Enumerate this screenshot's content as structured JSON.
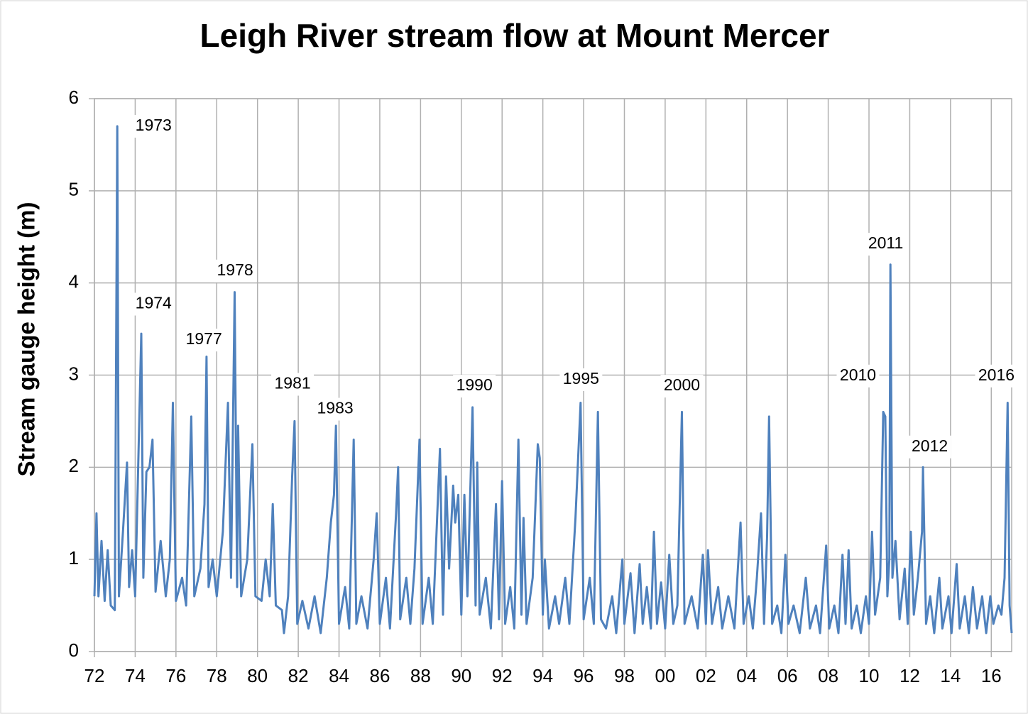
{
  "chart_data": {
    "type": "line",
    "title": "Leigh River stream flow at Mount Mercer",
    "y_label": "Stream gauge height (m)",
    "color": "#4f81bd",
    "grid": true,
    "xlim": [
      1972,
      2017
    ],
    "ylim": [
      0,
      6
    ],
    "yticks": [
      0,
      1,
      2,
      3,
      4,
      5,
      6
    ],
    "xticks": [
      {
        "value": 1972,
        "label": "72"
      },
      {
        "value": 1974,
        "label": "74"
      },
      {
        "value": 1976,
        "label": "76"
      },
      {
        "value": 1978,
        "label": "78"
      },
      {
        "value": 1980,
        "label": "80"
      },
      {
        "value": 1982,
        "label": "82"
      },
      {
        "value": 1984,
        "label": "84"
      },
      {
        "value": 1986,
        "label": "86"
      },
      {
        "value": 1988,
        "label": "88"
      },
      {
        "value": 1990,
        "label": "90"
      },
      {
        "value": 1992,
        "label": "92"
      },
      {
        "value": 1994,
        "label": "94"
      },
      {
        "value": 1996,
        "label": "96"
      },
      {
        "value": 1998,
        "label": "98"
      },
      {
        "value": 2000,
        "label": "00"
      },
      {
        "value": 2002,
        "label": "02"
      },
      {
        "value": 2004,
        "label": "04"
      },
      {
        "value": 2006,
        "label": "06"
      },
      {
        "value": 2008,
        "label": "08"
      },
      {
        "value": 2010,
        "label": "10"
      },
      {
        "value": 2012,
        "label": "12"
      },
      {
        "value": 2014,
        "label": "14"
      },
      {
        "value": 2016,
        "label": "16"
      }
    ],
    "x": [
      1972.0,
      1972.1,
      1972.2,
      1972.35,
      1972.5,
      1972.65,
      1972.8,
      1973.0,
      1973.12,
      1973.2,
      1973.4,
      1973.6,
      1973.7,
      1973.85,
      1974.0,
      1974.3,
      1974.4,
      1974.55,
      1974.7,
      1974.85,
      1975.0,
      1975.25,
      1975.5,
      1975.7,
      1975.85,
      1976.0,
      1976.3,
      1976.5,
      1976.75,
      1976.9,
      1977.2,
      1977.4,
      1977.5,
      1977.6,
      1977.8,
      1978.0,
      1978.3,
      1978.55,
      1978.7,
      1978.88,
      1979.0,
      1979.05,
      1979.2,
      1979.5,
      1979.75,
      1979.9,
      1980.2,
      1980.4,
      1980.6,
      1980.75,
      1980.9,
      1981.2,
      1981.3,
      1981.5,
      1981.7,
      1981.82,
      1981.95,
      1982.2,
      1982.5,
      1982.8,
      1983.1,
      1983.4,
      1983.6,
      1983.75,
      1983.85,
      1984.0,
      1984.3,
      1984.5,
      1984.72,
      1984.85,
      1985.1,
      1985.4,
      1985.7,
      1985.85,
      1986.0,
      1986.3,
      1986.5,
      1986.8,
      1986.9,
      1987.0,
      1987.3,
      1987.5,
      1987.7,
      1987.95,
      1988.1,
      1988.4,
      1988.6,
      1988.95,
      1989.1,
      1989.25,
      1989.4,
      1989.6,
      1989.7,
      1989.85,
      1990.0,
      1990.15,
      1990.3,
      1990.55,
      1990.7,
      1990.78,
      1990.9,
      1991.2,
      1991.45,
      1991.7,
      1991.85,
      1992.0,
      1992.15,
      1992.4,
      1992.6,
      1992.8,
      1992.95,
      1993.05,
      1993.2,
      1993.5,
      1993.75,
      1993.85,
      1994.0,
      1994.1,
      1994.3,
      1994.6,
      1994.8,
      1995.1,
      1995.3,
      1995.6,
      1995.85,
      1996.0,
      1996.3,
      1996.5,
      1996.7,
      1996.85,
      1997.1,
      1997.4,
      1997.6,
      1997.9,
      1998.0,
      1998.3,
      1998.5,
      1998.75,
      1998.9,
      1999.1,
      1999.3,
      1999.45,
      1999.6,
      1999.8,
      2000.0,
      2000.2,
      2000.4,
      2000.6,
      2000.82,
      2000.95,
      2001.3,
      2001.6,
      2001.85,
      2002.0,
      2002.1,
      2002.3,
      2002.6,
      2002.8,
      2003.1,
      2003.4,
      2003.7,
      2003.85,
      2004.1,
      2004.3,
      2004.5,
      2004.7,
      2004.85,
      2005.0,
      2005.1,
      2005.25,
      2005.5,
      2005.7,
      2005.9,
      2006.05,
      2006.3,
      2006.6,
      2006.9,
      2007.1,
      2007.4,
      2007.6,
      2007.9,
      2008.05,
      2008.3,
      2008.5,
      2008.7,
      2008.85,
      2009.0,
      2009.15,
      2009.4,
      2009.6,
      2009.85,
      2010.0,
      2010.15,
      2010.3,
      2010.55,
      2010.7,
      2010.8,
      2010.9,
      2011.0,
      2011.05,
      2011.15,
      2011.3,
      2011.5,
      2011.75,
      2011.9,
      2012.05,
      2012.2,
      2012.4,
      2012.6,
      2012.65,
      2012.8,
      2013.0,
      2013.2,
      2013.45,
      2013.6,
      2013.9,
      2014.05,
      2014.3,
      2014.45,
      2014.7,
      2014.9,
      2015.1,
      2015.3,
      2015.55,
      2015.75,
      2015.95,
      2016.1,
      2016.35,
      2016.5,
      2016.65,
      2016.8,
      2016.9,
      2017.0
    ],
    "values": [
      0.6,
      1.5,
      0.6,
      1.2,
      0.55,
      1.1,
      0.5,
      0.45,
      5.7,
      0.6,
      1.3,
      2.05,
      0.7,
      1.1,
      0.6,
      3.45,
      0.8,
      1.95,
      2.0,
      2.3,
      0.65,
      1.2,
      0.6,
      1.0,
      2.7,
      0.55,
      0.8,
      0.5,
      2.55,
      0.6,
      0.9,
      1.6,
      3.2,
      0.7,
      1.0,
      0.6,
      1.3,
      2.7,
      0.8,
      3.9,
      0.7,
      2.45,
      0.6,
      1.0,
      2.25,
      0.6,
      0.55,
      1.0,
      0.6,
      1.6,
      0.5,
      0.45,
      0.2,
      0.6,
      1.9,
      2.5,
      0.3,
      0.55,
      0.25,
      0.6,
      0.2,
      0.8,
      1.4,
      1.7,
      2.45,
      0.3,
      0.7,
      0.25,
      2.3,
      0.3,
      0.6,
      0.25,
      1.0,
      1.5,
      0.3,
      0.8,
      0.25,
      1.5,
      2.0,
      0.35,
      0.8,
      0.3,
      0.9,
      2.3,
      0.3,
      0.8,
      0.3,
      2.2,
      0.4,
      1.9,
      0.9,
      1.8,
      1.4,
      1.7,
      0.4,
      1.7,
      0.6,
      2.65,
      0.5,
      2.05,
      0.4,
      0.8,
      0.25,
      1.6,
      0.35,
      1.85,
      0.3,
      0.7,
      0.25,
      2.3,
      0.4,
      1.45,
      0.3,
      0.8,
      2.25,
      2.1,
      0.4,
      1.0,
      0.25,
      0.6,
      0.3,
      0.8,
      0.3,
      1.45,
      2.7,
      0.35,
      0.8,
      0.3,
      2.6,
      0.35,
      0.25,
      0.6,
      0.2,
      1.0,
      0.3,
      0.85,
      0.2,
      0.95,
      0.3,
      0.7,
      0.25,
      1.3,
      0.3,
      0.75,
      0.25,
      1.05,
      0.3,
      0.5,
      2.6,
      0.3,
      0.6,
      0.25,
      1.05,
      0.3,
      1.1,
      0.3,
      0.7,
      0.25,
      0.6,
      0.25,
      1.4,
      0.3,
      0.6,
      0.25,
      0.8,
      1.5,
      0.3,
      1.25,
      2.55,
      0.3,
      0.5,
      0.2,
      1.05,
      0.3,
      0.5,
      0.2,
      0.8,
      0.25,
      0.5,
      0.2,
      1.15,
      0.25,
      0.5,
      0.2,
      1.05,
      0.3,
      1.1,
      0.25,
      0.5,
      0.2,
      0.6,
      0.3,
      1.3,
      0.4,
      0.8,
      2.6,
      2.55,
      0.6,
      1.0,
      4.2,
      0.8,
      1.2,
      0.35,
      0.9,
      0.3,
      1.3,
      0.4,
      0.8,
      1.3,
      2.0,
      0.3,
      0.6,
      0.2,
      0.8,
      0.25,
      0.6,
      0.2,
      0.95,
      0.25,
      0.6,
      0.2,
      0.7,
      0.25,
      0.6,
      0.2,
      0.6,
      0.3,
      0.5,
      0.4,
      0.8,
      2.7,
      0.5,
      0.2
    ],
    "annotations": [
      {
        "text": "1973",
        "x": 1974.9,
        "y": 5.7
      },
      {
        "text": "1974",
        "x": 1974.9,
        "y": 3.77
      },
      {
        "text": "1978",
        "x": 1978.9,
        "y": 4.13
      },
      {
        "text": "1977",
        "x": 1977.37,
        "y": 3.38
      },
      {
        "text": "1981",
        "x": 1981.72,
        "y": 2.9
      },
      {
        "text": "1983",
        "x": 1983.81,
        "y": 2.63
      },
      {
        "text": "1990",
        "x": 1990.64,
        "y": 2.88
      },
      {
        "text": "1995",
        "x": 1995.87,
        "y": 2.95
      },
      {
        "text": "2000",
        "x": 2000.82,
        "y": 2.88
      },
      {
        "text": "2010",
        "x": 2009.46,
        "y": 2.99
      },
      {
        "text": "2011",
        "x": 2010.82,
        "y": 4.42
      },
      {
        "text": "2012",
        "x": 2012.98,
        "y": 2.22
      },
      {
        "text": "2016",
        "x": 2016.25,
        "y": 2.99
      }
    ]
  }
}
